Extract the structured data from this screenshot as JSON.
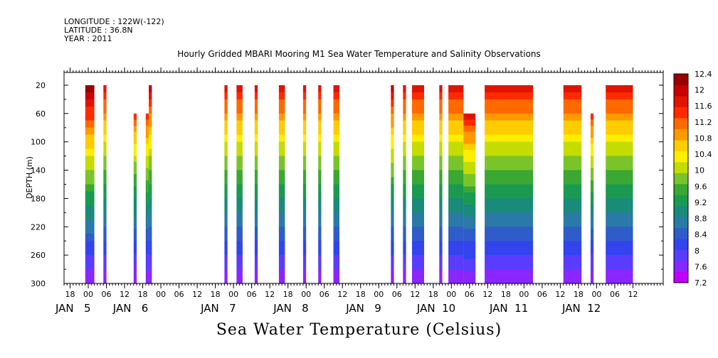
{
  "header": {
    "longitude": "LONGITUDE : 122W(-122)",
    "latitude": "LATITUDE : 36.8N",
    "year": "YEAR : 2011"
  },
  "chart_data": {
    "type": "heatmap",
    "title": "Hourly Gridded MBARI Mooring M1 Sea Water Temperature and Salinity Observations",
    "variable_label": "Sea Water Temperature (Celsius)",
    "ylabel": "DEPTH (m)",
    "y_ticks": [
      20,
      60,
      100,
      140,
      180,
      220,
      260,
      300
    ],
    "y_range": [
      300,
      2
    ],
    "x_range_hours": [
      -8,
      190
    ],
    "hour_ticks": [
      {
        "h": -6,
        "label": "18"
      },
      {
        "h": 0,
        "label": "00"
      },
      {
        "h": 6,
        "label": "06"
      },
      {
        "h": 12,
        "label": "12"
      },
      {
        "h": 18,
        "label": "18"
      },
      {
        "h": 24,
        "label": "00"
      },
      {
        "h": 30,
        "label": "06"
      },
      {
        "h": 36,
        "label": "12"
      },
      {
        "h": 42,
        "label": "18"
      },
      {
        "h": 48,
        "label": "00"
      },
      {
        "h": 54,
        "label": "06"
      },
      {
        "h": 60,
        "label": "12"
      },
      {
        "h": 66,
        "label": "18"
      },
      {
        "h": 72,
        "label": "00"
      },
      {
        "h": 78,
        "label": "06"
      },
      {
        "h": 84,
        "label": "12"
      },
      {
        "h": 90,
        "label": "18"
      },
      {
        "h": 96,
        "label": "00"
      },
      {
        "h": 102,
        "label": "06"
      },
      {
        "h": 108,
        "label": "12"
      },
      {
        "h": 114,
        "label": "18"
      },
      {
        "h": 120,
        "label": "00"
      },
      {
        "h": 126,
        "label": "06"
      },
      {
        "h": 132,
        "label": "12"
      },
      {
        "h": 138,
        "label": "18"
      },
      {
        "h": 144,
        "label": "00"
      },
      {
        "h": 150,
        "label": "06"
      },
      {
        "h": 156,
        "label": "12"
      },
      {
        "h": 162,
        "label": "18"
      },
      {
        "h": 168,
        "label": "00"
      },
      {
        "h": 174,
        "label": "06"
      },
      {
        "h": 180,
        "label": "12"
      }
    ],
    "day_labels": [
      {
        "h": -5,
        "text": "JAN   5"
      },
      {
        "h": 14,
        "text": "JAN   6"
      },
      {
        "h": 43,
        "text": "JAN   7"
      },
      {
        "h": 67,
        "text": "JAN   8"
      },
      {
        "h": 91,
        "text": "JAN   9"
      },
      {
        "h": 115,
        "text": "JAN  10"
      },
      {
        "h": 139,
        "text": "JAN  11"
      },
      {
        "h": 163,
        "text": "JAN  12"
      }
    ],
    "colorbar": {
      "levels": [
        7.2,
        7.6,
        8,
        8.4,
        8.8,
        9.2,
        9.6,
        10,
        10.4,
        10.8,
        11.2,
        11.6,
        12,
        12.4
      ],
      "labels": [
        "7.2",
        "7.6",
        "8",
        "8.4",
        "8.8",
        "9.2",
        "9.6",
        "10",
        "10.4",
        "10.8",
        "11.2",
        "11.6",
        "12",
        "12.4"
      ],
      "colors": [
        "#c000ff",
        "#8a26ff",
        "#5a3cff",
        "#3344ee",
        "#2e5cc8",
        "#2a7aa8",
        "#1a8a7a",
        "#1a9a50",
        "#3aa832",
        "#7ac42a",
        "#c4dc00",
        "#ffee00",
        "#ffcc00",
        "#ff9900",
        "#ff6a00",
        "#ff2a00",
        "#e01400",
        "#c80000",
        "#9a0000"
      ]
    },
    "columns": [
      {
        "start": -1,
        "end": 2,
        "top_depth": 20,
        "surface_temp": 12.4
      },
      {
        "start": 5,
        "end": 6,
        "top_depth": 20,
        "surface_temp": 11.8
      },
      {
        "start": 15,
        "end": 16,
        "top_depth": 60,
        "surface_temp": 11.4
      },
      {
        "start": 19,
        "end": 20,
        "top_depth": 60,
        "surface_temp": 11.5
      },
      {
        "start": 20,
        "end": 21,
        "top_depth": 20,
        "surface_temp": 11.9
      },
      {
        "start": 45,
        "end": 46,
        "top_depth": 20,
        "surface_temp": 11.8
      },
      {
        "start": 49,
        "end": 51,
        "top_depth": 20,
        "surface_temp": 11.8
      },
      {
        "start": 55,
        "end": 56,
        "top_depth": 20,
        "surface_temp": 11.8
      },
      {
        "start": 63,
        "end": 65,
        "top_depth": 20,
        "surface_temp": 11.8
      },
      {
        "start": 71,
        "end": 72,
        "top_depth": 20,
        "surface_temp": 11.8
      },
      {
        "start": 76,
        "end": 77,
        "top_depth": 20,
        "surface_temp": 11.8
      },
      {
        "start": 81,
        "end": 83,
        "top_depth": 20,
        "surface_temp": 11.8
      },
      {
        "start": 100,
        "end": 101,
        "top_depth": 20,
        "surface_temp": 12.0
      },
      {
        "start": 104,
        "end": 105,
        "top_depth": 20,
        "surface_temp": 11.8
      },
      {
        "start": 107,
        "end": 111,
        "top_depth": 20,
        "surface_temp": 11.8
      },
      {
        "start": 116,
        "end": 117,
        "top_depth": 20,
        "surface_temp": 11.8
      },
      {
        "start": 119,
        "end": 124,
        "top_depth": 20,
        "surface_temp": 11.8
      },
      {
        "start": 124,
        "end": 128,
        "top_depth": 60,
        "surface_temp": 11.7
      },
      {
        "start": 131,
        "end": 147,
        "top_depth": 20,
        "surface_temp": 11.8
      },
      {
        "start": 157,
        "end": 163,
        "top_depth": 20,
        "surface_temp": 11.8
      },
      {
        "start": 166,
        "end": 167,
        "top_depth": 60,
        "surface_temp": 11.5
      },
      {
        "start": 171,
        "end": 180,
        "top_depth": 20,
        "surface_temp": 11.8
      }
    ],
    "bottom_temp": 7.4,
    "grid": false
  }
}
